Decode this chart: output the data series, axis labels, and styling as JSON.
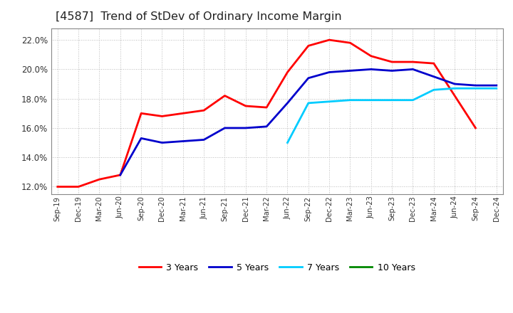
{
  "title": "[4587]  Trend of StDev of Ordinary Income Margin",
  "title_fontsize": 11.5,
  "ylim": [
    0.115,
    0.228
  ],
  "yticks": [
    0.12,
    0.14,
    0.16,
    0.18,
    0.2,
    0.22
  ],
  "background_color": "#ffffff",
  "plot_bg_color": "#ffffff",
  "grid_color": "#bbbbbb",
  "x_labels": [
    "Sep-19",
    "Dec-19",
    "Mar-20",
    "Jun-20",
    "Sep-20",
    "Dec-20",
    "Mar-21",
    "Jun-21",
    "Sep-21",
    "Dec-21",
    "Mar-22",
    "Jun-22",
    "Sep-22",
    "Dec-22",
    "Mar-23",
    "Jun-23",
    "Sep-23",
    "Dec-23",
    "Mar-24",
    "Jun-24",
    "Sep-24",
    "Dec-24"
  ],
  "series_3yr_x": [
    0,
    1,
    2,
    3,
    4,
    5,
    6,
    7,
    8,
    9,
    10,
    11,
    12,
    13,
    14,
    15,
    16,
    17,
    18,
    19,
    20
  ],
  "series_3yr_y": [
    0.12,
    0.12,
    0.125,
    0.128,
    0.17,
    0.168,
    0.17,
    0.172,
    0.182,
    0.175,
    0.174,
    0.198,
    0.216,
    0.22,
    0.218,
    0.209,
    0.205,
    0.205,
    0.204,
    0.182,
    0.16
  ],
  "series_3yr_color": "#ff0000",
  "series_5yr_x": [
    3,
    4,
    5,
    6,
    7,
    8,
    9,
    10,
    11,
    12,
    13,
    14,
    15,
    16,
    17,
    18,
    19,
    20,
    21
  ],
  "series_5yr_y": [
    0.128,
    0.153,
    0.15,
    0.151,
    0.152,
    0.16,
    0.16,
    0.161,
    0.177,
    0.194,
    0.198,
    0.199,
    0.2,
    0.199,
    0.2,
    0.195,
    0.19,
    0.189,
    0.189
  ],
  "series_5yr_color": "#0000cc",
  "series_7yr_x": [
    11,
    12,
    13,
    14,
    15,
    16,
    17,
    18,
    19,
    20,
    21
  ],
  "series_7yr_y": [
    0.15,
    0.177,
    0.178,
    0.179,
    0.179,
    0.179,
    0.179,
    0.186,
    0.187,
    0.187,
    0.187
  ],
  "series_7yr_color": "#00ccff",
  "series_10yr_x": [],
  "series_10yr_y": [],
  "series_10yr_color": "#008800",
  "legend_labels": [
    "3 Years",
    "5 Years",
    "7 Years",
    "10 Years"
  ],
  "legend_colors": [
    "#ff0000",
    "#0000cc",
    "#00ccff",
    "#008800"
  ]
}
